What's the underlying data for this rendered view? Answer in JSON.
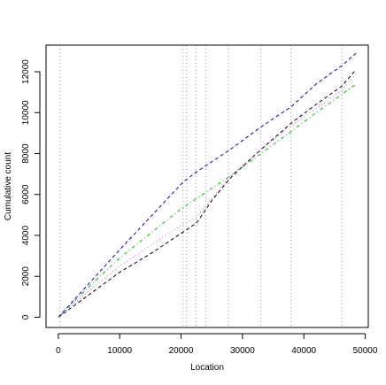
{
  "chart_data": {
    "type": "line",
    "title": "",
    "xlabel": "Location",
    "ylabel": "Cumulative count",
    "xlim": [
      -2000,
      50500
    ],
    "ylim": [
      -500,
      13300
    ],
    "xticks": [
      0,
      10000,
      20000,
      30000,
      40000,
      50000
    ],
    "xtick_labels": [
      "0",
      "10000",
      "20000",
      "30000",
      "40000",
      "50000"
    ],
    "yticks": [
      0,
      2000,
      4000,
      6000,
      8000,
      10000,
      12000
    ],
    "ytick_labels": [
      "0",
      "2000",
      "4000",
      "6000",
      "8000",
      "10000",
      "12000"
    ],
    "grid": false,
    "legend": "none",
    "vlines": {
      "color": "#8899bb",
      "style": "dotted",
      "x": [
        300,
        20300,
        20900,
        22400,
        24000,
        27700,
        33000,
        37900,
        46200
      ]
    },
    "series": [
      {
        "color": "#000000",
        "style": "dashed",
        "x": [
          0,
          5000,
          10000,
          15000,
          20000,
          22500,
          25000,
          28000,
          33000,
          38000,
          42000,
          46200,
          48500
        ],
        "y": [
          0,
          1100,
          2200,
          3100,
          4100,
          4600,
          5700,
          6800,
          8200,
          9500,
          10400,
          11300,
          12100
        ]
      },
      {
        "color": "#ff44ff",
        "style": "dotted",
        "x": [
          0,
          5000,
          10000,
          15000,
          20000,
          22500,
          25000,
          28000,
          33000,
          38000,
          42000,
          46200,
          48500
        ],
        "y": [
          0,
          1300,
          2500,
          3500,
          4500,
          4900,
          5800,
          6900,
          8200,
          9400,
          10200,
          11100,
          11900
        ]
      },
      {
        "color": "#0000ff",
        "style": "dashed",
        "x": [
          0,
          10000,
          20300,
          22500,
          28000,
          33000,
          38000,
          42000,
          46200,
          48500
        ],
        "y": [
          0,
          3300,
          6600,
          7100,
          8200,
          9300,
          10300,
          11400,
          12300,
          12900
        ]
      },
      {
        "color": "#00cc00",
        "style": "dashdot",
        "x": [
          0,
          5000,
          10000,
          20000,
          24000,
          28000,
          33000,
          38000,
          42000,
          46200,
          48500
        ],
        "y": [
          0,
          1500,
          2900,
          5300,
          6100,
          6900,
          8000,
          9100,
          10000,
          10900,
          11400
        ]
      }
    ]
  }
}
